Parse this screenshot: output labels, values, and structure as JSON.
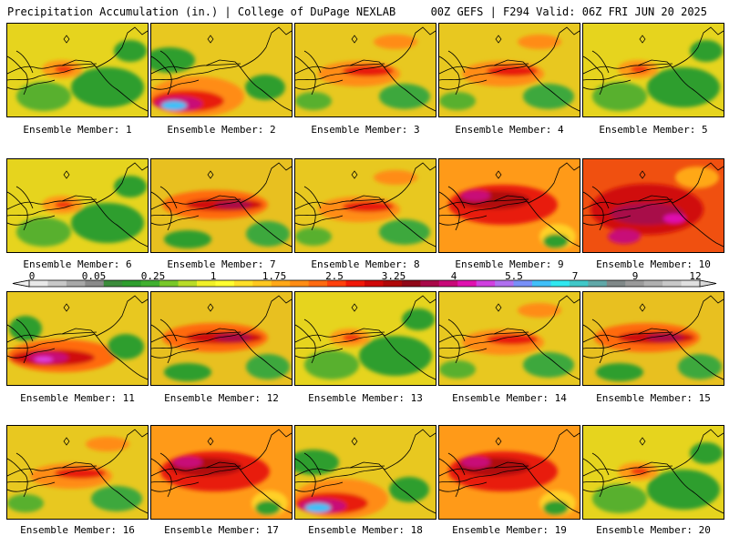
{
  "header": {
    "title": "Precipitation Accumulation (in.) | College of DuPage NEXLAB",
    "run_info": "00Z GEFS | F294 Valid: 06Z FRI JUN 20 2025"
  },
  "panels": [
    {
      "label": "Ensemble Member: 1",
      "scheme": "dry"
    },
    {
      "label": "Ensemble Member: 2",
      "scheme": "bigsw"
    },
    {
      "label": "Ensemble Member: 3",
      "scheme": "mid"
    },
    {
      "label": "Ensemble Member: 4",
      "scheme": "mid"
    },
    {
      "label": "Ensemble Member: 5",
      "scheme": "dry"
    },
    {
      "label": "Ensemble Member: 6",
      "scheme": "dry"
    },
    {
      "label": "Ensemble Member: 7",
      "scheme": "band"
    },
    {
      "label": "Ensemble Member: 8",
      "scheme": "mid"
    },
    {
      "label": "Ensemble Member: 9",
      "scheme": "wet"
    },
    {
      "label": "Ensemble Member: 10",
      "scheme": "verywet"
    },
    {
      "label": "Ensemble Member: 11",
      "scheme": "bandsw"
    },
    {
      "label": "Ensemble Member: 12",
      "scheme": "band"
    },
    {
      "label": "Ensemble Member: 13",
      "scheme": "dry"
    },
    {
      "label": "Ensemble Member: 14",
      "scheme": "mid"
    },
    {
      "label": "Ensemble Member: 15",
      "scheme": "band"
    },
    {
      "label": "Ensemble Member: 16",
      "scheme": "mid"
    },
    {
      "label": "Ensemble Member: 17",
      "scheme": "wet"
    },
    {
      "label": "Ensemble Member: 18",
      "scheme": "bigsw"
    },
    {
      "label": "Ensemble Member: 19",
      "scheme": "wet"
    },
    {
      "label": "Ensemble Member: 20",
      "scheme": "dry"
    }
  ],
  "colorbar": {
    "labels": [
      "0",
      "0.05",
      "0.25",
      "1",
      "1.75",
      "2.5",
      "3.25",
      "4",
      "5.5",
      "7",
      "9",
      "12"
    ],
    "colors": [
      "#e8e8e8",
      "#c8c8c8",
      "#a8a8a8",
      "#8a8a8a",
      "#3c8c3c",
      "#2e9e2e",
      "#40b030",
      "#78c828",
      "#b8dc28",
      "#f0f028",
      "#ffff30",
      "#ffe028",
      "#ffc820",
      "#ffa818",
      "#ff8c14",
      "#ff6a10",
      "#ff400c",
      "#f01808",
      "#d00808",
      "#b00808",
      "#900818",
      "#a80848",
      "#c80878",
      "#e010b0",
      "#d040e0",
      "#b070f0",
      "#7890f8",
      "#40c0f8",
      "#30e8f0",
      "#40c8c8",
      "#60a8a8",
      "#808888",
      "#9a9a9a",
      "#b0b0b0",
      "#c8c8c8",
      "#e0e0e0"
    ]
  }
}
